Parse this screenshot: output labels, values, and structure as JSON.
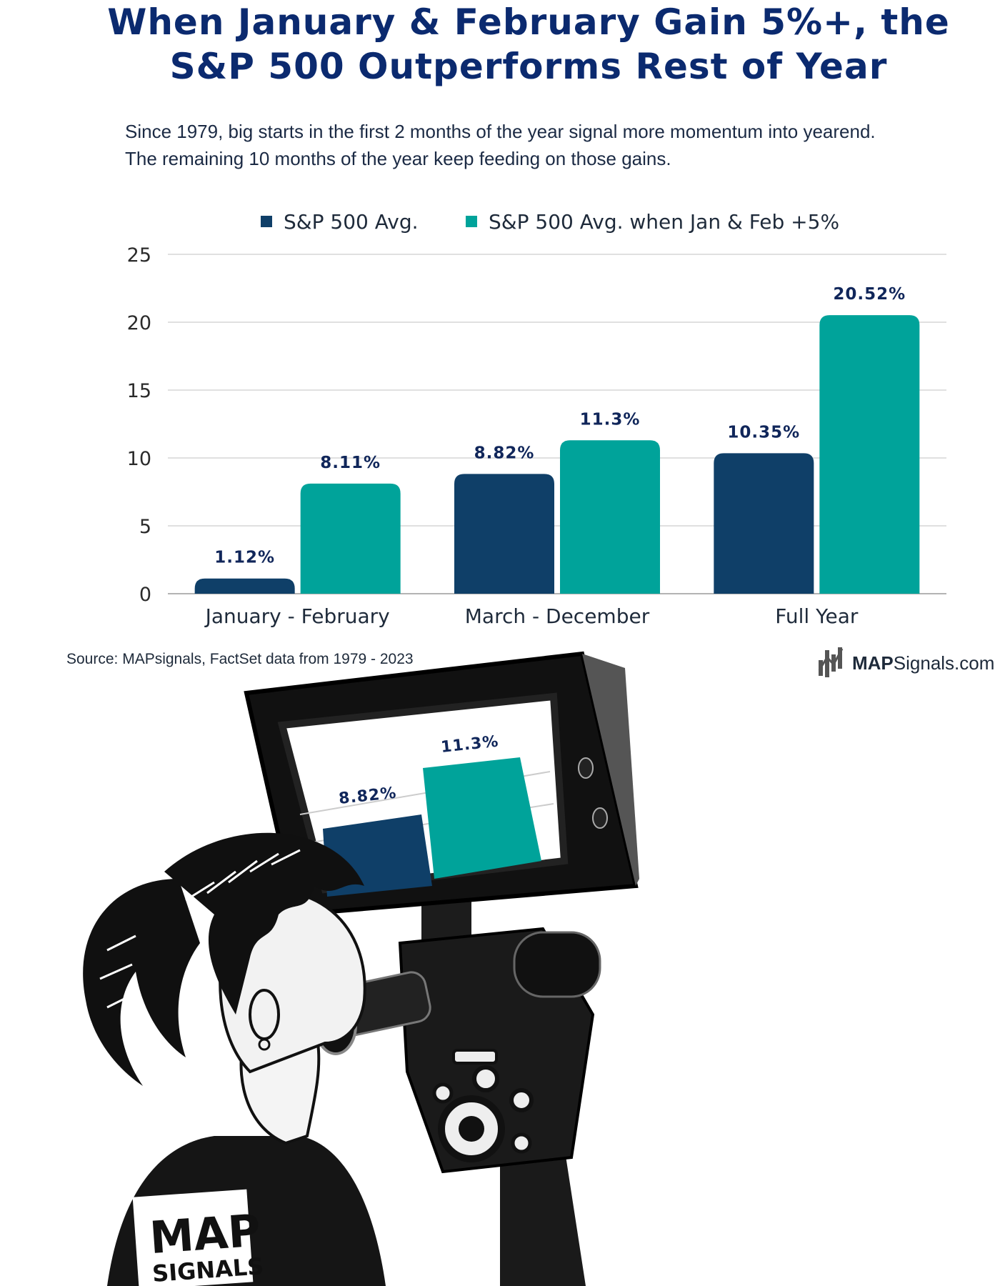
{
  "title": {
    "line1": "When January & February Gain 5%+, the",
    "line2": "S&P 500 Outperforms Rest of Year",
    "color": "#0b2a6f"
  },
  "subtitle": {
    "line1": "Since 1979, big starts in the first 2 months of the year signal more momentum into yearend.",
    "line2": "The remaining 10 months of the year keep feeding on those gains."
  },
  "chart_data": {
    "type": "bar",
    "categories": [
      "January - February",
      "March - December",
      "Full Year"
    ],
    "series": [
      {
        "name": "S&P 500 Avg.",
        "values": [
          1.12,
          8.82,
          10.35
        ],
        "labels": [
          "1.12%",
          "8.82%",
          "10.35%"
        ],
        "color": "#0f3f68"
      },
      {
        "name": "S&P 500 Avg. when Jan & Feb +5%",
        "values": [
          8.11,
          11.3,
          20.52
        ],
        "labels": [
          "8.11%",
          "11.3%",
          "20.52%"
        ],
        "color": "#00a39a"
      }
    ],
    "ylim": [
      0,
      25
    ],
    "yticks": [
      0,
      5,
      10,
      15,
      20,
      25
    ],
    "grid": true,
    "legend_position": "top"
  },
  "source": "Source: MAPsignals, FactSet data from 1979 - 2023",
  "brand": {
    "strong": "MAP",
    "rest": "Signals.com"
  },
  "illustration": {
    "icon": "camera-viewfinder-illustration",
    "screen_labels": [
      "8.82%",
      "11.3%"
    ],
    "shirt_text": [
      "MAP",
      "SIGNALS"
    ]
  }
}
